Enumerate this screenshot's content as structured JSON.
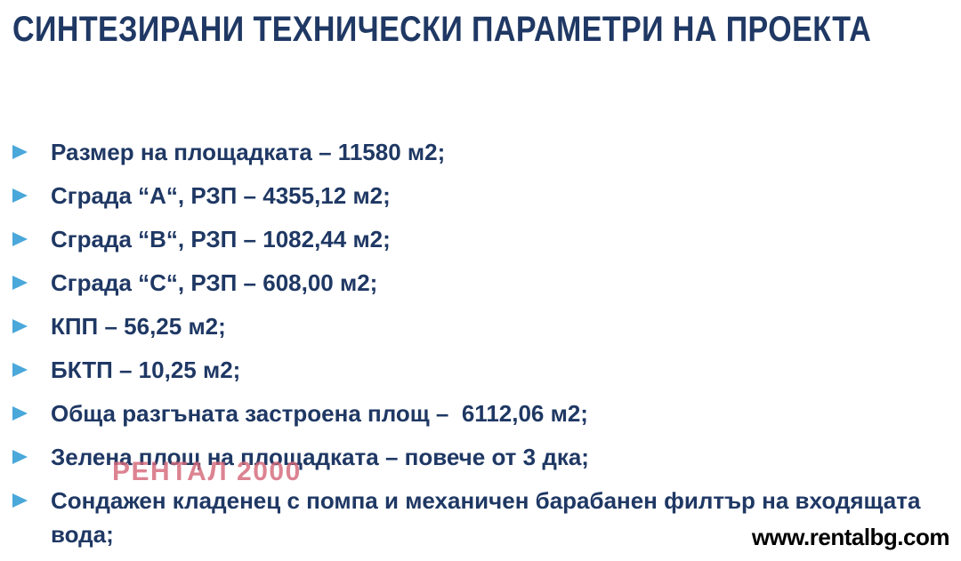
{
  "slide": {
    "title": "СИНТЕЗИРАНИ ТЕХНИЧЕСКИ ПАРАМЕТРИ НА ПРОЕКТА",
    "bullets": [
      "Размер на площадката – 11580 м2;",
      "Сграда “А“, РЗП – 4355,12 м2;",
      "Сграда “В“, РЗП – 1082,44 м2;",
      "Сграда “С“, РЗП – 608,00 м2;",
      "КПП – 56,25 м2;",
      "БКТП – 10,25 м2;",
      "Обща разгъната застроена площ –  6112,06 м2;",
      "Зелена площ на площадката – повече от 3 дка;",
      "Сондажен кладенец с помпа и механичен барабанен филтър на входящата вода;"
    ],
    "watermark": "РЕНТАЛ 2000",
    "footer_url": "www.rentalbg.com",
    "colors": {
      "title": "#1f3864",
      "body": "#1f3864",
      "bullet": "#4aa8da",
      "watermark": "#d5697a",
      "footer": "#000000",
      "background": "#ffffff"
    }
  }
}
